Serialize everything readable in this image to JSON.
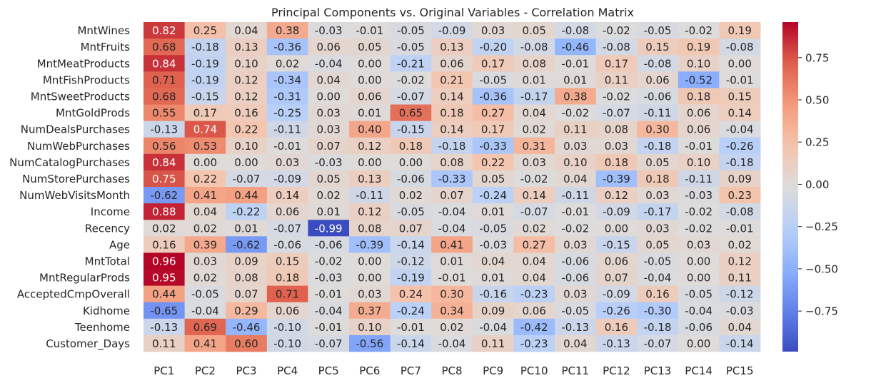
{
  "chart_data": {
    "type": "heatmap",
    "title": "Principal Components vs. Original Variables - Correlation Matrix",
    "xlabel": "",
    "ylabel": "",
    "colormap": "coolwarm",
    "vmin": -0.99,
    "vmax": 0.96,
    "columns": [
      "PC1",
      "PC2",
      "PC3",
      "PC4",
      "PC5",
      "PC6",
      "PC7",
      "PC8",
      "PC9",
      "PC10",
      "PC11",
      "PC12",
      "PC13",
      "PC14",
      "PC15"
    ],
    "rows": [
      "MntWines",
      "MntFruits",
      "MntMeatProducts",
      "MntFishProducts",
      "MntSweetProducts",
      "MntGoldProds",
      "NumDealsPurchases",
      "NumWebPurchases",
      "NumCatalogPurchases",
      "NumStorePurchases",
      "NumWebVisitsMonth",
      "Income",
      "Recency",
      "Age",
      "MntTotal",
      "MntRegularProds",
      "AcceptedCmpOverall",
      "Kidhome",
      "Teenhome",
      "Customer_Days"
    ],
    "values": [
      [
        0.82,
        0.25,
        0.04,
        0.38,
        -0.03,
        -0.01,
        -0.05,
        -0.09,
        0.03,
        0.05,
        -0.08,
        -0.02,
        -0.05,
        -0.02,
        0.19
      ],
      [
        0.68,
        -0.18,
        0.13,
        -0.36,
        0.06,
        0.05,
        -0.05,
        0.13,
        -0.2,
        -0.08,
        -0.46,
        -0.08,
        0.15,
        0.19,
        -0.08
      ],
      [
        0.84,
        -0.19,
        0.1,
        0.02,
        -0.04,
        0.0,
        -0.21,
        0.06,
        0.17,
        0.08,
        -0.01,
        0.17,
        -0.08,
        0.1,
        -0.0
      ],
      [
        0.71,
        -0.19,
        0.12,
        -0.34,
        0.04,
        -0.0,
        -0.02,
        0.21,
        -0.05,
        0.01,
        0.01,
        0.11,
        0.06,
        -0.52,
        -0.01
      ],
      [
        0.68,
        -0.15,
        0.12,
        -0.31,
        0.0,
        0.06,
        -0.07,
        0.14,
        -0.36,
        -0.17,
        0.38,
        -0.02,
        -0.06,
        0.18,
        0.15
      ],
      [
        0.55,
        0.17,
        0.16,
        -0.25,
        0.03,
        0.01,
        0.65,
        0.18,
        0.27,
        0.04,
        -0.02,
        -0.07,
        -0.11,
        0.06,
        0.14
      ],
      [
        -0.13,
        0.74,
        0.22,
        -0.11,
        0.03,
        0.4,
        -0.15,
        0.14,
        0.17,
        0.02,
        0.11,
        0.08,
        0.3,
        0.06,
        -0.04
      ],
      [
        0.56,
        0.53,
        0.1,
        -0.01,
        0.07,
        0.12,
        0.18,
        -0.18,
        -0.33,
        0.31,
        0.03,
        0.03,
        -0.18,
        -0.01,
        -0.26
      ],
      [
        0.84,
        0.0,
        0.0,
        0.03,
        -0.03,
        0.0,
        -0.0,
        0.08,
        0.22,
        0.03,
        0.1,
        0.18,
        0.05,
        0.1,
        -0.18
      ],
      [
        0.75,
        0.22,
        -0.07,
        -0.09,
        0.05,
        0.13,
        -0.06,
        -0.33,
        0.05,
        -0.02,
        0.04,
        -0.39,
        0.18,
        -0.11,
        0.09
      ],
      [
        -0.62,
        0.41,
        0.44,
        0.14,
        0.02,
        -0.11,
        0.02,
        0.07,
        -0.24,
        0.14,
        -0.11,
        0.12,
        0.03,
        -0.03,
        0.23
      ],
      [
        0.88,
        0.04,
        -0.22,
        0.06,
        0.01,
        0.12,
        -0.05,
        -0.04,
        0.01,
        -0.07,
        -0.01,
        -0.09,
        -0.17,
        -0.02,
        -0.08
      ],
      [
        0.02,
        0.02,
        0.01,
        -0.07,
        -0.99,
        0.08,
        0.07,
        -0.04,
        -0.05,
        0.02,
        -0.02,
        -0.0,
        0.03,
        -0.02,
        -0.01
      ],
      [
        0.16,
        0.39,
        -0.62,
        -0.06,
        -0.06,
        -0.39,
        -0.14,
        0.41,
        -0.03,
        0.27,
        0.03,
        -0.15,
        0.05,
        0.03,
        0.02
      ],
      [
        0.96,
        0.03,
        0.09,
        0.15,
        -0.02,
        0.0,
        -0.12,
        0.01,
        0.04,
        0.04,
        -0.06,
        0.06,
        -0.05,
        0.0,
        0.12
      ],
      [
        0.95,
        0.02,
        0.08,
        0.18,
        -0.03,
        0.0,
        -0.19,
        -0.01,
        0.01,
        0.04,
        -0.06,
        0.07,
        -0.04,
        -0.0,
        0.11
      ],
      [
        0.44,
        -0.05,
        0.07,
        0.71,
        -0.01,
        0.03,
        0.24,
        0.3,
        -0.16,
        -0.23,
        0.03,
        -0.09,
        0.16,
        -0.05,
        -0.12
      ],
      [
        -0.65,
        -0.04,
        0.29,
        0.06,
        -0.04,
        0.37,
        -0.24,
        0.34,
        0.09,
        0.06,
        -0.05,
        -0.26,
        -0.3,
        -0.04,
        -0.03
      ],
      [
        -0.13,
        0.69,
        -0.46,
        -0.1,
        -0.01,
        0.1,
        -0.01,
        0.02,
        -0.04,
        -0.42,
        -0.13,
        0.16,
        -0.18,
        -0.06,
        0.04
      ],
      [
        0.11,
        0.41,
        0.6,
        -0.1,
        -0.07,
        -0.56,
        -0.14,
        -0.04,
        0.11,
        -0.23,
        0.04,
        -0.13,
        -0.07,
        -0.0,
        -0.14
      ]
    ],
    "colorbar_ticks": [
      0.75,
      0.5,
      0.25,
      0.0,
      -0.25,
      -0.5,
      -0.75
    ],
    "grid": false,
    "legend": "colorbar-right"
  }
}
